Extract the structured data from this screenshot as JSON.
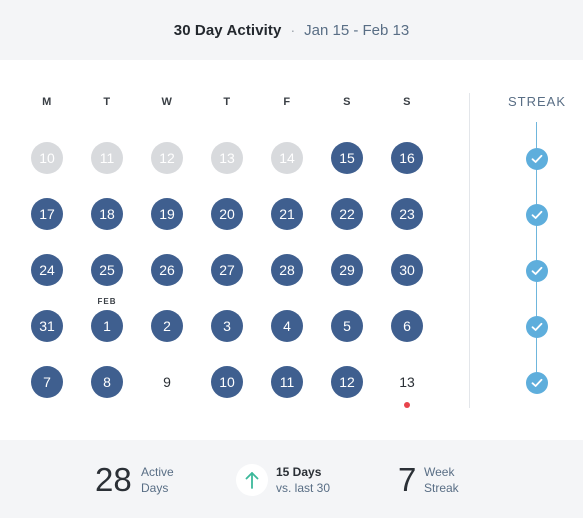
{
  "header": {
    "title": "30 Day Activity",
    "separator": "·",
    "range": "Jan 15 - Feb 13"
  },
  "calendar": {
    "weekdays": [
      "M",
      "T",
      "W",
      "T",
      "F",
      "S",
      "S"
    ],
    "weeks": [
      [
        {
          "day": "10",
          "state": "past"
        },
        {
          "day": "11",
          "state": "past"
        },
        {
          "day": "12",
          "state": "past"
        },
        {
          "day": "13",
          "state": "past"
        },
        {
          "day": "14",
          "state": "past"
        },
        {
          "day": "15",
          "state": "active"
        },
        {
          "day": "16",
          "state": "active"
        }
      ],
      [
        {
          "day": "17",
          "state": "active"
        },
        {
          "day": "18",
          "state": "active"
        },
        {
          "day": "19",
          "state": "active"
        },
        {
          "day": "20",
          "state": "active"
        },
        {
          "day": "21",
          "state": "active"
        },
        {
          "day": "22",
          "state": "active"
        },
        {
          "day": "23",
          "state": "active"
        }
      ],
      [
        {
          "day": "24",
          "state": "active"
        },
        {
          "day": "25",
          "state": "active"
        },
        {
          "day": "26",
          "state": "active"
        },
        {
          "day": "27",
          "state": "active"
        },
        {
          "day": "28",
          "state": "active"
        },
        {
          "day": "29",
          "state": "active"
        },
        {
          "day": "30",
          "state": "active"
        }
      ],
      [
        {
          "day": "31",
          "state": "active"
        },
        {
          "day": "1",
          "state": "active",
          "month": "FEB"
        },
        {
          "day": "2",
          "state": "active"
        },
        {
          "day": "3",
          "state": "active"
        },
        {
          "day": "4",
          "state": "active"
        },
        {
          "day": "5",
          "state": "active"
        },
        {
          "day": "6",
          "state": "active"
        }
      ],
      [
        {
          "day": "7",
          "state": "active"
        },
        {
          "day": "8",
          "state": "active"
        },
        {
          "day": "9",
          "state": "inactive"
        },
        {
          "day": "10",
          "state": "active"
        },
        {
          "day": "11",
          "state": "active"
        },
        {
          "day": "12",
          "state": "active"
        },
        {
          "day": "13",
          "state": "inactive",
          "today": true
        }
      ]
    ],
    "streak_label": "STREAK",
    "streak_weeks": [
      true,
      true,
      true,
      true,
      true
    ]
  },
  "stats": {
    "active_days": {
      "value": "28",
      "label_line1": "Active",
      "label_line2": "Days"
    },
    "trend": {
      "icon": "arrow-up-icon",
      "bold": "15 Days",
      "sub": "vs. last 30"
    },
    "week_streak": {
      "value": "7",
      "label_line1": "Week",
      "label_line2": "Streak"
    }
  },
  "colors": {
    "active": "#3f5f8f",
    "past": "#d8dadd",
    "streak": "#5eaedc",
    "today_marker": "#e8434b",
    "trend_arrow": "#3bb89a"
  }
}
